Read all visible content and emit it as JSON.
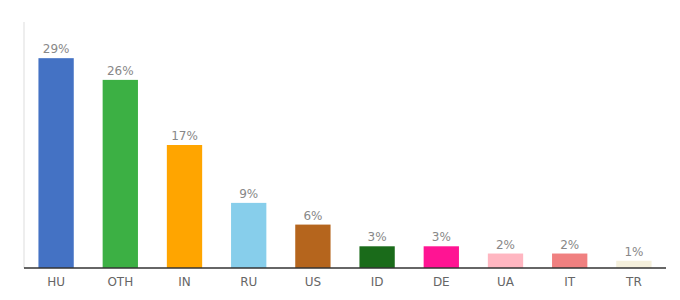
{
  "chart_data": {
    "type": "bar",
    "categories": [
      "HU",
      "OTH",
      "IN",
      "RU",
      "US",
      "ID",
      "DE",
      "UA",
      "IT",
      "TR"
    ],
    "values": [
      29,
      26,
      17,
      9,
      6,
      3,
      3,
      2,
      2,
      1
    ],
    "value_labels": [
      "29%",
      "26%",
      "17%",
      "9%",
      "6%",
      "3%",
      "3%",
      "2%",
      "2%",
      "1%"
    ],
    "colors": [
      "#4472c4",
      "#3cb044",
      "#ffa500",
      "#87ceeb",
      "#b5651d",
      "#1a6b1a",
      "#ff1493",
      "#ffb6c1",
      "#f08080",
      "#f5f0dc"
    ],
    "ylim": [
      0,
      34
    ],
    "data_labels": true,
    "tick_labels": "x",
    "grid": false
  }
}
